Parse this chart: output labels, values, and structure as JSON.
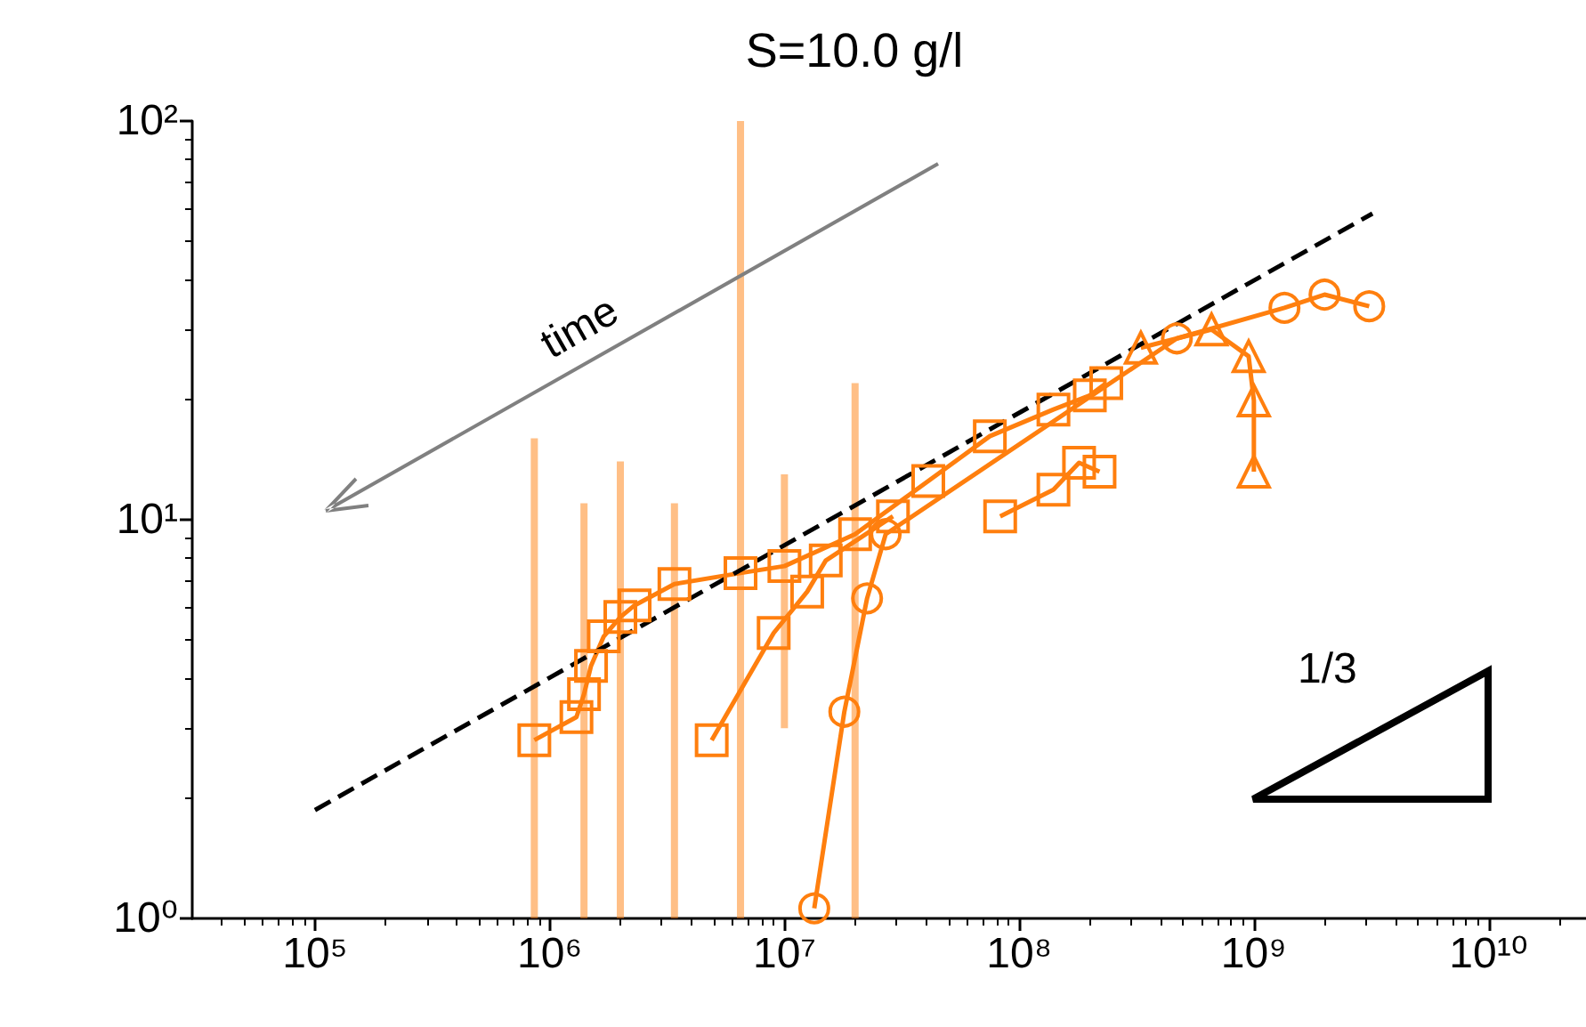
{
  "chart_data": {
    "type": "line",
    "title": "S=10.0 g/l",
    "log": "xy",
    "xlim": [
      30000,
      26000000000
    ],
    "ylim": [
      1,
      100
    ],
    "xticks": [
      {
        "value": 100000,
        "label": "10⁵"
      },
      {
        "value": 1000000,
        "label": "10⁶"
      },
      {
        "value": 10000000,
        "label": "10⁷"
      },
      {
        "value": 100000000,
        "label": "10⁸"
      },
      {
        "value": 1000000000,
        "label": "10⁹"
      },
      {
        "value": 10000000000,
        "label": "10¹⁰"
      }
    ],
    "yticks": [
      {
        "value": 1,
        "label": "10⁰"
      },
      {
        "value": 10,
        "label": "10¹"
      },
      {
        "value": 100,
        "label": "10²"
      }
    ],
    "annotations": [
      "time",
      "1/3"
    ],
    "series": [
      {
        "color": "#ff7f0e",
        "marker": "square",
        "x": [
          860000,
          1300000,
          1400000,
          1500000,
          1700000,
          2000000,
          2300000,
          3400000,
          6500000,
          10000000,
          20000000,
          41000000,
          75000000,
          140000000,
          200000000,
          235000000
        ],
        "values": [
          2.8,
          3.2,
          3.65,
          4.3,
          5.1,
          5.7,
          6.1,
          6.9,
          7.35,
          7.65,
          9.2,
          12.5,
          16.2,
          18.9,
          20.5,
          22
        ],
        "errors": [
          [
            1,
            16
          ],
          null,
          [
            1,
            11
          ],
          null,
          null,
          [
            1,
            14
          ],
          null,
          [
            1,
            11
          ],
          [
            1,
            100
          ],
          [
            3,
            13
          ],
          [
            1,
            22
          ],
          null,
          null,
          null,
          null,
          null
        ]
      },
      {
        "color": "#ff7f0e",
        "marker": "square",
        "x": [
          4900000,
          9000000,
          12500000,
          15000000,
          29000000
        ],
        "values": [
          2.8,
          5.2,
          6.6,
          7.9,
          10.2
        ]
      },
      {
        "color": "#ff7f0e",
        "marker": "square",
        "x": [
          83000000,
          140000000,
          180000000,
          220000000
        ],
        "values": [
          10.2,
          11.9,
          13.9,
          13.2
        ]
      },
      {
        "color": "#ff7f0e",
        "marker": "circle",
        "x": [
          13400000,
          18000000,
          22500000,
          27000000,
          470000000,
          1350000000,
          2000000000,
          3100000000
        ],
        "values": [
          1.06,
          3.3,
          6.35,
          9.2,
          28.5,
          34,
          36.7,
          34.3
        ]
      },
      {
        "color": "#ff7f0e",
        "marker": "triangle",
        "x": [
          330000000,
          660000000,
          950000000,
          1000000000,
          1000000000
        ],
        "values": [
          27,
          30,
          25.7,
          19.9,
          13.2
        ]
      },
      {
        "color": "#000000",
        "marker": "none",
        "line_style": "dashed",
        "x": [
          100000,
          3200000000
        ],
        "values": [
          1.87,
          58.6
        ]
      }
    ]
  }
}
